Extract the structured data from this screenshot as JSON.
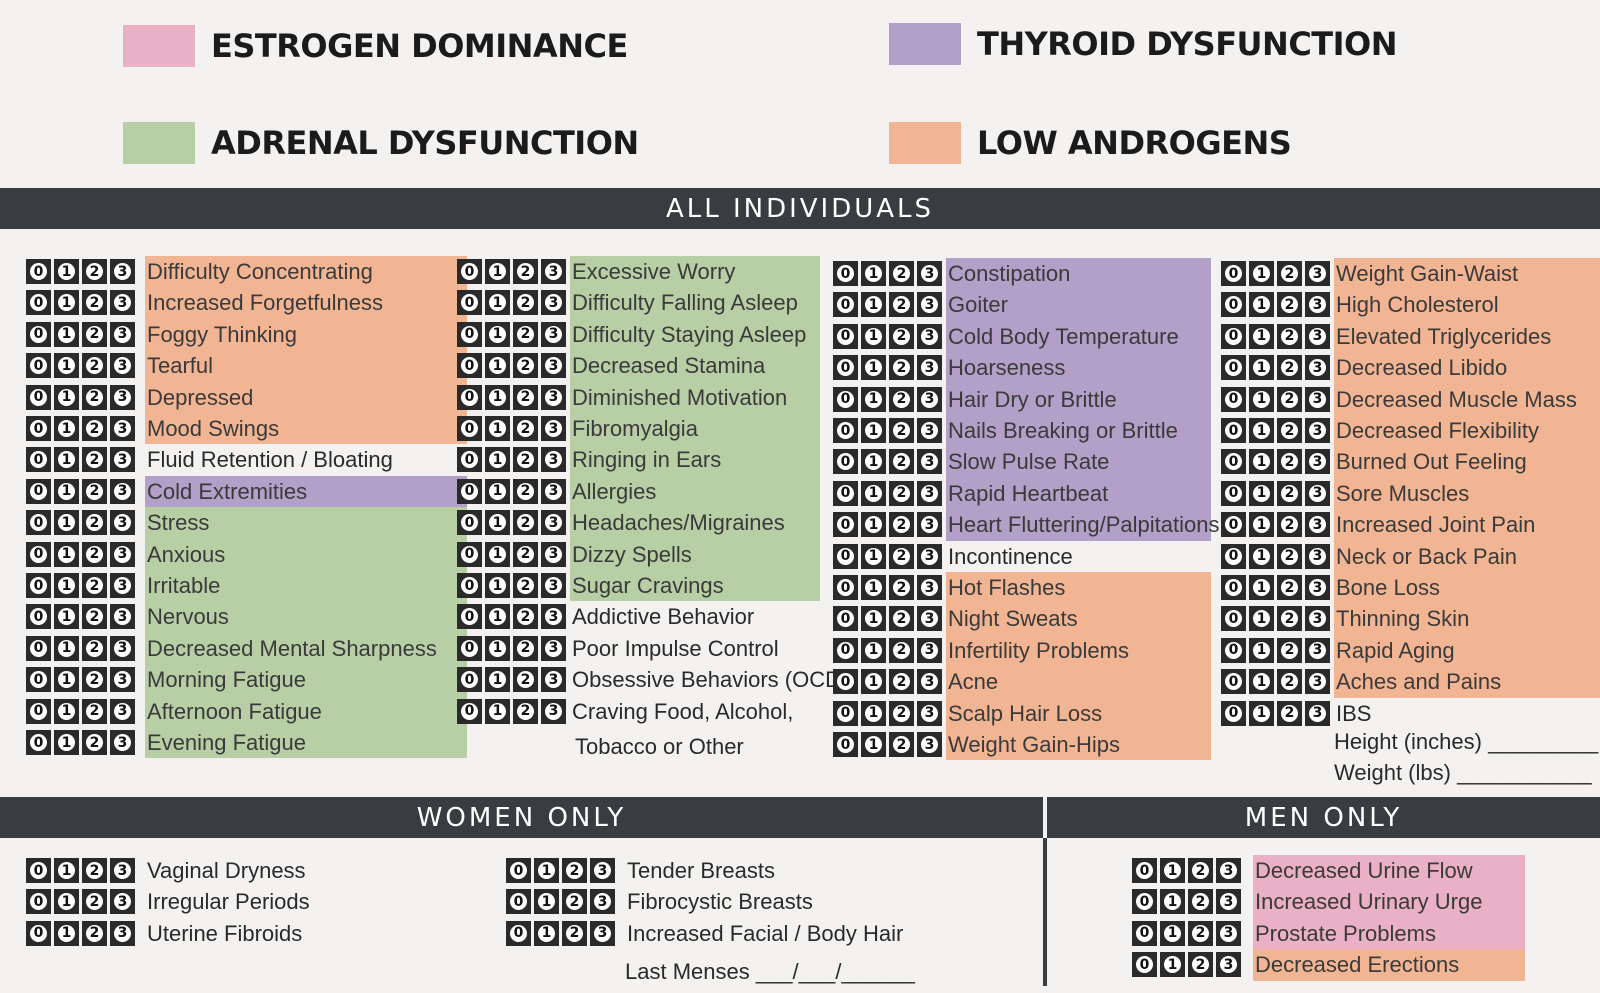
{
  "colors": {
    "pink": "#eab0c6",
    "purple": "#b2a0c8",
    "green": "#b8cfa6",
    "orange": "#f2b594",
    "bar": "#3a3d40"
  },
  "legend": {
    "estrogen": "ESTROGEN DOMINANCE",
    "thyroid": "THYROID DYSFUNCTION",
    "adrenal": "ADRENAL DYSFUNCTION",
    "androgens": "LOW ANDROGENS"
  },
  "headers": {
    "all": "ALL INDIVIDUALS",
    "women": "WOMEN ONLY",
    "men": "MEN ONLY"
  },
  "scale": [
    "0",
    "1",
    "2",
    "3"
  ],
  "all": {
    "col1": [
      {
        "label": "Difficulty Concentrating",
        "cat": "orange"
      },
      {
        "label": "Increased Forgetfulness",
        "cat": "orange"
      },
      {
        "label": "Foggy Thinking",
        "cat": "orange"
      },
      {
        "label": "Tearful",
        "cat": "orange"
      },
      {
        "label": "Depressed",
        "cat": "orange"
      },
      {
        "label": "Mood Swings",
        "cat": "orange"
      },
      {
        "label": "Fluid Retention / Bloating",
        "cat": "none"
      },
      {
        "label": "Cold Extremities",
        "cat": "purple"
      },
      {
        "label": "Stress",
        "cat": "green"
      },
      {
        "label": "Anxious",
        "cat": "green"
      },
      {
        "label": "Irritable",
        "cat": "green"
      },
      {
        "label": "Nervous",
        "cat": "green"
      },
      {
        "label": "Decreased Mental Sharpness",
        "cat": "green"
      },
      {
        "label": "Morning Fatigue",
        "cat": "green"
      },
      {
        "label": "Afternoon Fatigue",
        "cat": "green"
      },
      {
        "label": "Evening Fatigue",
        "cat": "green"
      }
    ],
    "col2": [
      {
        "label": "Excessive Worry",
        "cat": "green"
      },
      {
        "label": "Difficulty Falling Asleep",
        "cat": "green"
      },
      {
        "label": "Difficulty Staying Asleep",
        "cat": "green"
      },
      {
        "label": "Decreased Stamina",
        "cat": "green"
      },
      {
        "label": "Diminished Motivation",
        "cat": "green"
      },
      {
        "label": "Fibromyalgia",
        "cat": "green"
      },
      {
        "label": "Ringing in Ears",
        "cat": "green"
      },
      {
        "label": "Allergies",
        "cat": "green"
      },
      {
        "label": "Headaches/Migraines",
        "cat": "green"
      },
      {
        "label": "Dizzy Spells",
        "cat": "green"
      },
      {
        "label": "Sugar Cravings",
        "cat": "green"
      },
      {
        "label": "Addictive Behavior",
        "cat": "none"
      },
      {
        "label": "Poor Impulse Control",
        "cat": "none"
      },
      {
        "label": "Obsessive Behaviors (OCD)",
        "cat": "none"
      },
      {
        "label": "Craving Food, Alcohol,",
        "cat": "none"
      }
    ],
    "col2_extra": "Tobacco or Other",
    "col3": [
      {
        "label": "Constipation",
        "cat": "purple"
      },
      {
        "label": "Goiter",
        "cat": "purple"
      },
      {
        "label": "Cold Body Temperature",
        "cat": "purple"
      },
      {
        "label": "Hoarseness",
        "cat": "purple"
      },
      {
        "label": "Hair Dry or Brittle",
        "cat": "purple"
      },
      {
        "label": "Nails Breaking or Brittle",
        "cat": "purple"
      },
      {
        "label": "Slow Pulse Rate",
        "cat": "purple"
      },
      {
        "label": "Rapid Heartbeat",
        "cat": "purple"
      },
      {
        "label": "Heart Fluttering/Palpitations",
        "cat": "purple"
      },
      {
        "label": "Incontinence",
        "cat": "none"
      },
      {
        "label": "Hot Flashes",
        "cat": "orange"
      },
      {
        "label": "Night Sweats",
        "cat": "orange"
      },
      {
        "label": "Infertility Problems",
        "cat": "orange"
      },
      {
        "label": "Acne",
        "cat": "orange"
      },
      {
        "label": "Scalp Hair Loss",
        "cat": "orange"
      },
      {
        "label": "Weight Gain-Hips",
        "cat": "orange"
      }
    ],
    "col4": [
      {
        "label": "Weight Gain-Waist",
        "cat": "orange"
      },
      {
        "label": "High Cholesterol",
        "cat": "orange"
      },
      {
        "label": "Elevated Triglycerides",
        "cat": "orange"
      },
      {
        "label": "Decreased Libido",
        "cat": "orange"
      },
      {
        "label": "Decreased Muscle Mass",
        "cat": "orange"
      },
      {
        "label": "Decreased Flexibility",
        "cat": "orange"
      },
      {
        "label": "Burned Out Feeling",
        "cat": "orange"
      },
      {
        "label": "Sore Muscles",
        "cat": "orange"
      },
      {
        "label": "Increased Joint Pain",
        "cat": "orange"
      },
      {
        "label": "Neck or Back Pain",
        "cat": "orange"
      },
      {
        "label": "Bone Loss",
        "cat": "orange"
      },
      {
        "label": "Thinning Skin",
        "cat": "orange"
      },
      {
        "label": "Rapid Aging",
        "cat": "orange"
      },
      {
        "label": "Aches and Pains",
        "cat": "orange"
      },
      {
        "label": "IBS",
        "cat": "none"
      }
    ],
    "height_label": "Height (inches) _________",
    "weight_label": "Weight (lbs) ___________"
  },
  "women": {
    "left": [
      {
        "label": "Vaginal Dryness",
        "cat": "none"
      },
      {
        "label": "Irregular Periods",
        "cat": "none"
      },
      {
        "label": "Uterine Fibroids",
        "cat": "none"
      }
    ],
    "right": [
      {
        "label": "Tender Breasts",
        "cat": "none"
      },
      {
        "label": "Fibrocystic Breasts",
        "cat": "none"
      },
      {
        "label": "Increased Facial / Body Hair",
        "cat": "none"
      }
    ],
    "last_menses": "Last Menses ___/___/______"
  },
  "men": {
    "items": [
      {
        "label": "Decreased Urine Flow",
        "cat": "pink"
      },
      {
        "label": "Increased Urinary Urge",
        "cat": "pink"
      },
      {
        "label": "Prostate Problems",
        "cat": "pink"
      },
      {
        "label": "Decreased Erections",
        "cat": "orange"
      }
    ]
  }
}
